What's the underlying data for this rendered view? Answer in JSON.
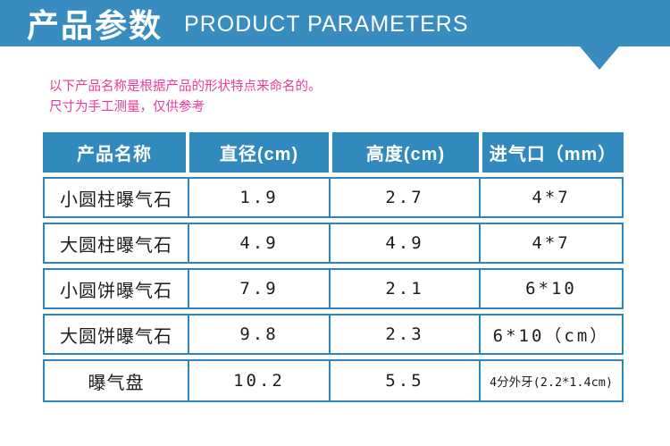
{
  "banner": {
    "title_zh": "产品参数",
    "title_en": "PRODUCT PARAMETERS",
    "bg_color": "#388cc0",
    "text_color": "#ffffff"
  },
  "notes": {
    "line1": "以下产品名称是根据产品的形状特点来命名的。",
    "line2": "尺寸为手工测量，仅供参考",
    "color": "#ee3a9c"
  },
  "table": {
    "header": {
      "col1": "产品名称",
      "col2": "直径(cm)",
      "col3": "高度(cm)",
      "col4": "进气口（mm）"
    },
    "header_bg": "#3289bd",
    "border_color": "#2e86c1",
    "rows": [
      {
        "name": "小圆柱曝气石",
        "diameter": "1.9",
        "height": "2.7",
        "inlet": "4*7"
      },
      {
        "name": "大圆柱曝气石",
        "diameter": "4.9",
        "height": "4.9",
        "inlet": "4*7"
      },
      {
        "name": "小圆饼曝气石",
        "diameter": "7.9",
        "height": "2.1",
        "inlet": "6*10"
      },
      {
        "name": "大圆饼曝气石",
        "diameter": "9.8",
        "height": "2.3",
        "inlet": "6*10（cm）"
      },
      {
        "name": "曝气盘",
        "diameter": "10.2",
        "height": "5.5",
        "inlet": "4分外牙(2.2*1.4cm)"
      }
    ]
  }
}
